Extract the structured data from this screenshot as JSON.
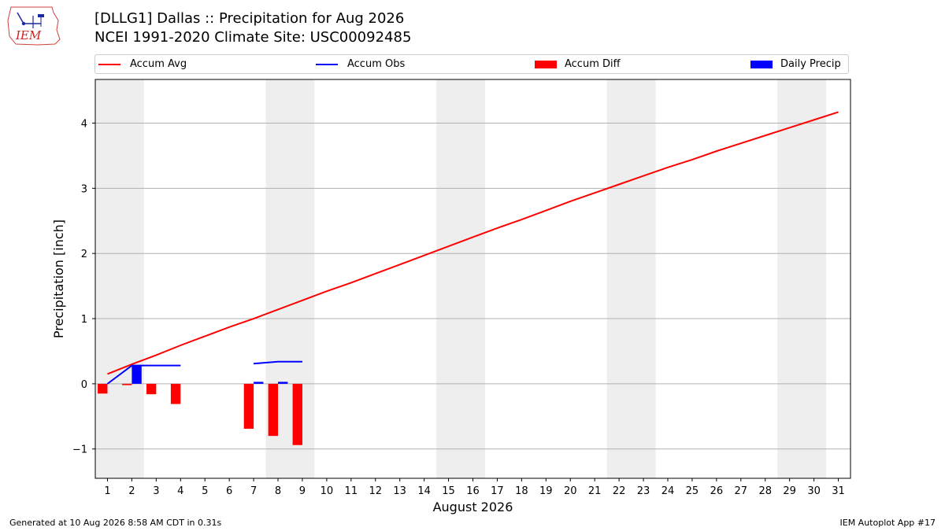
{
  "header": {
    "logo_text": "IEM",
    "title_line1": "[DLLG1] Dallas :: Precipitation for Aug 2026",
    "title_line2": "NCEI 1991-2020 Climate Site: USC00092485"
  },
  "legend": {
    "placement": "top, above plot",
    "items": [
      {
        "label": "Accum Avg",
        "kind": "line",
        "color": "#ff0000"
      },
      {
        "label": "Accum Obs",
        "kind": "line",
        "color": "#0000ff"
      },
      {
        "label": "Accum Diff",
        "kind": "bar",
        "color": "#ff0000"
      },
      {
        "label": "Daily Precip",
        "kind": "bar",
        "color": "#0000ff"
      }
    ]
  },
  "footer": {
    "left": "Generated at 10 Aug 2026 8:58 AM CDT in 0.31s",
    "right": "IEM Autoplot App #17"
  },
  "chart_data": {
    "type": "bar",
    "xlabel": "August 2026",
    "ylabel": "Precipitation [inch]",
    "xlim": [
      0.5,
      31.5
    ],
    "ylim": [
      -1.45,
      4.67
    ],
    "grid": "horizontal",
    "x_ticks": [
      1,
      2,
      3,
      4,
      5,
      6,
      7,
      8,
      9,
      10,
      11,
      12,
      13,
      14,
      15,
      16,
      17,
      18,
      19,
      20,
      21,
      22,
      23,
      24,
      25,
      26,
      27,
      28,
      29,
      30,
      31
    ],
    "y_ticks": [
      -1,
      0,
      1,
      2,
      3,
      4
    ],
    "y_tick_labels": [
      "−1",
      "0",
      "1",
      "2",
      "3",
      "4"
    ],
    "weekend_shading": [
      [
        1,
        2
      ],
      [
        8,
        9
      ],
      [
        15,
        16
      ],
      [
        22,
        23
      ],
      [
        29,
        30
      ]
    ],
    "colors": {
      "avg": "#ff0000",
      "obs": "#0000ff",
      "diff": "#ff0000",
      "daily": "#0000ff",
      "shade": "#eeeeee",
      "grid": "#b0b0b0"
    },
    "accum_avg": {
      "x": [
        1,
        2,
        3,
        4,
        5,
        6,
        7,
        8,
        9,
        10,
        11,
        12,
        13,
        14,
        15,
        16,
        17,
        18,
        19,
        20,
        21,
        22,
        23,
        24,
        25,
        26,
        27,
        28,
        29,
        30,
        31
      ],
      "values": [
        0.15,
        0.3,
        0.44,
        0.59,
        0.73,
        0.87,
        1.0,
        1.14,
        1.28,
        1.42,
        1.55,
        1.69,
        1.83,
        1.97,
        2.11,
        2.25,
        2.39,
        2.52,
        2.66,
        2.8,
        2.93,
        3.06,
        3.19,
        3.32,
        3.44,
        3.57,
        3.69,
        3.81,
        3.93,
        4.05,
        4.17
      ]
    },
    "accum_obs": {
      "segments": [
        {
          "x": [
            1,
            2,
            3,
            4
          ],
          "values": [
            0.0,
            0.28,
            0.28,
            0.28
          ]
        },
        {
          "x": [
            7,
            8,
            9
          ],
          "values": [
            0.31,
            0.34,
            0.34
          ]
        }
      ]
    },
    "accum_diff": {
      "x": [
        1,
        2,
        3,
        4,
        7,
        8,
        9
      ],
      "values": [
        -0.15,
        -0.02,
        -0.16,
        -0.31,
        -0.69,
        -0.8,
        -0.94
      ]
    },
    "daily_precip": {
      "x": [
        2,
        7,
        8
      ],
      "values": [
        0.28,
        0.03,
        0.03
      ]
    }
  }
}
